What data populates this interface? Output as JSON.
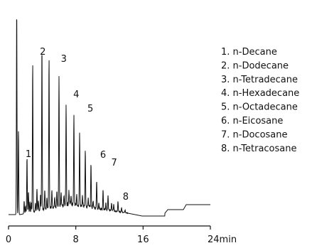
{
  "chart_data": {
    "type": "line",
    "x_unit": "min",
    "xlim": [
      0,
      24
    ],
    "x_ticks": [
      {
        "value": 0,
        "label": "0"
      },
      {
        "value": 8,
        "label": "8"
      },
      {
        "value": 16,
        "label": "16"
      },
      {
        "value": 24,
        "label": "24min"
      }
    ],
    "grid": false,
    "legend_position": "right",
    "peaks": [
      {
        "label": "1",
        "x": 2.2
      },
      {
        "label": "2",
        "x": 4.0
      },
      {
        "label": "3",
        "x": 5.9
      },
      {
        "label": "4",
        "x": 7.8
      },
      {
        "label": "5",
        "x": 9.4
      },
      {
        "label": "6",
        "x": 10.9
      },
      {
        "label": "7",
        "x": 12.3
      },
      {
        "label": "8",
        "x": 13.6
      }
    ],
    "legend": [
      "1. n-Decane",
      "2. n-Dodecane",
      "3. n-Tetradecane",
      "4. n-Hexadecane",
      "5. n-Octadecane",
      "6. n-Eicosane",
      "7. n-Docosane",
      "8. n-Tetracosane"
    ],
    "colors": {
      "line": "#111111",
      "background": "#ffffff"
    }
  }
}
